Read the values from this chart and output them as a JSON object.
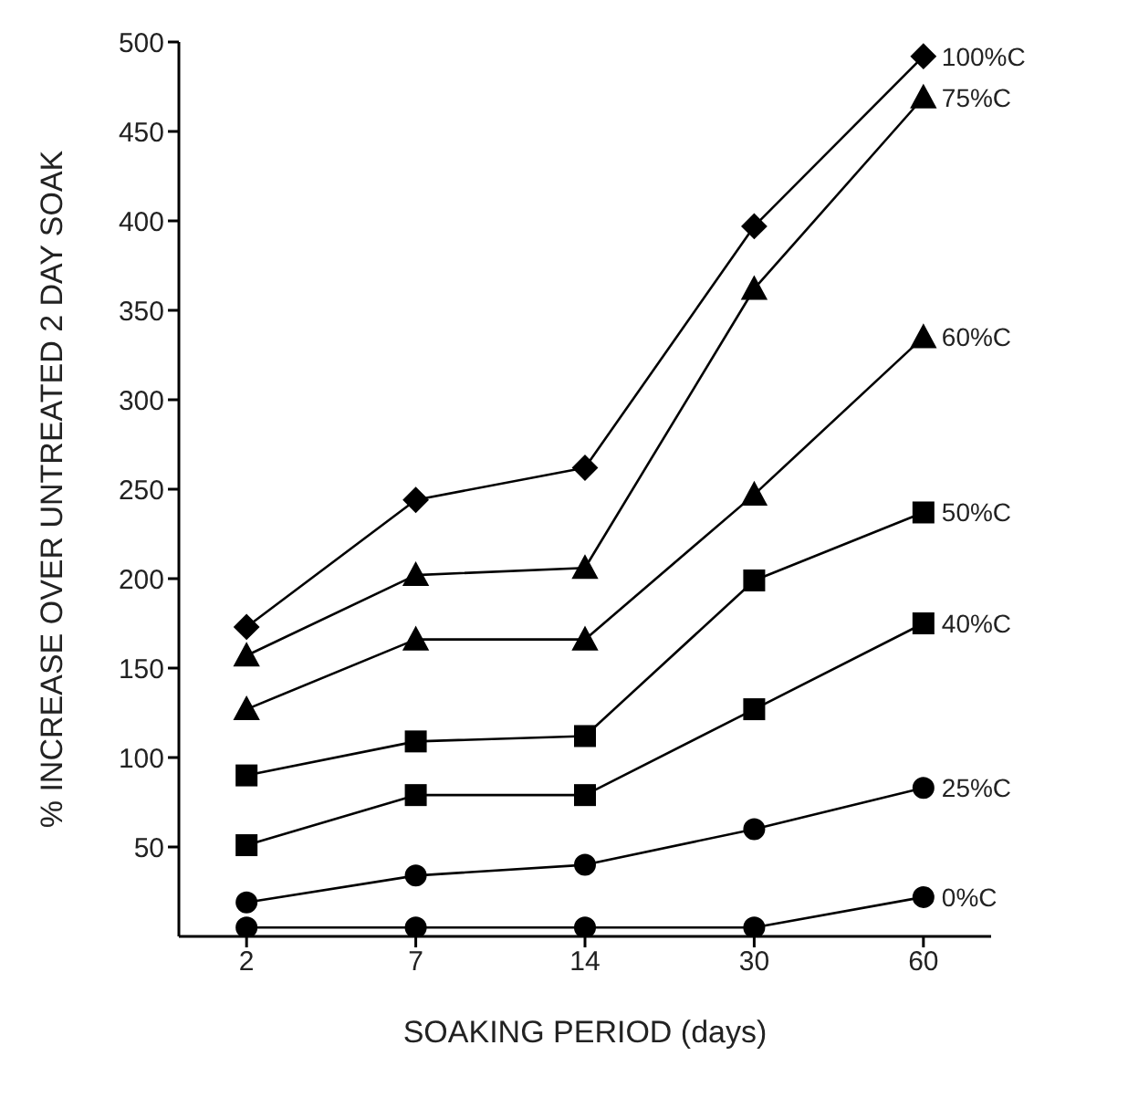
{
  "chart_data": {
    "type": "line",
    "xlabel": "SOAKING PERIOD (days)",
    "ylabel": "% INCREASE OVER UNTREATED 2 DAY SOAK",
    "categories": [
      "2",
      "7",
      "14",
      "30",
      "60"
    ],
    "ylim": [
      0,
      500
    ],
    "yticks": [
      50,
      100,
      150,
      200,
      250,
      300,
      350,
      400,
      450,
      500
    ],
    "grid": false,
    "legend": false,
    "line_style": "solid",
    "series": [
      {
        "name": "100%C",
        "color": "#000000",
        "marker": "diamond",
        "values": [
          173,
          244,
          262,
          397,
          492
        ]
      },
      {
        "name": "75%C",
        "color": "#000000",
        "marker": "triangle",
        "values": [
          157,
          202,
          206,
          362,
          469
        ]
      },
      {
        "name": "60%C",
        "color": "#000000",
        "marker": "triangle",
        "values": [
          127,
          166,
          166,
          247,
          335
        ]
      },
      {
        "name": "50%C",
        "color": "#000000",
        "marker": "square",
        "values": [
          90,
          109,
          112,
          199,
          237
        ]
      },
      {
        "name": "40%C",
        "color": "#000000",
        "marker": "square",
        "values": [
          51,
          79,
          79,
          127,
          175
        ]
      },
      {
        "name": "25%C",
        "color": "#000000",
        "marker": "circle",
        "values": [
          19,
          34,
          40,
          60,
          83
        ]
      },
      {
        "name": "0%C",
        "color": "#000000",
        "marker": "circle",
        "values": [
          5,
          5,
          5,
          5,
          22
        ]
      }
    ]
  }
}
